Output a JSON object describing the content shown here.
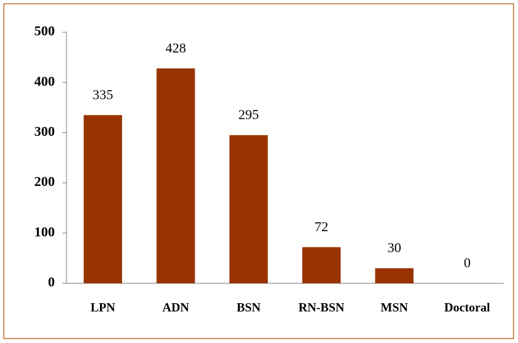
{
  "chart_data": {
    "type": "bar",
    "categories": [
      "LPN",
      "ADN",
      "BSN",
      "RN-BSN",
      "MSN",
      "Doctoral"
    ],
    "values": [
      335,
      428,
      295,
      72,
      30,
      0
    ],
    "color": "#993300",
    "ylim": [
      0,
      500
    ],
    "yticks": [
      0,
      100,
      200,
      300,
      400,
      500
    ],
    "grid": false
  }
}
